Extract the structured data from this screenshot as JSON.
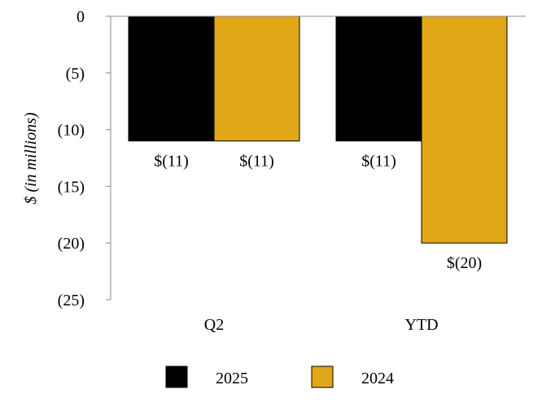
{
  "chart_data": {
    "type": "bar",
    "title": "",
    "xlabel": "",
    "ylabel": "$ (in millions)",
    "categories": [
      "Q2",
      "YTD"
    ],
    "series": [
      {
        "name": "2025",
        "values": [
          -11,
          -11
        ],
        "labels": [
          "$(11)",
          "$(11)"
        ],
        "color": "#000000"
      },
      {
        "name": "2024",
        "values": [
          -11,
          -20
        ],
        "labels": [
          "$(11)",
          "$(20)"
        ],
        "color": "#E0A819"
      }
    ],
    "ylim": [
      -25,
      0
    ],
    "yticks": [
      0,
      -5,
      -10,
      -15,
      -20,
      -25
    ],
    "ytick_labels": [
      "0",
      "(5)",
      "(10)",
      "(15)",
      "(20)",
      "(25)"
    ],
    "grid": false,
    "legend_position": "bottom"
  }
}
